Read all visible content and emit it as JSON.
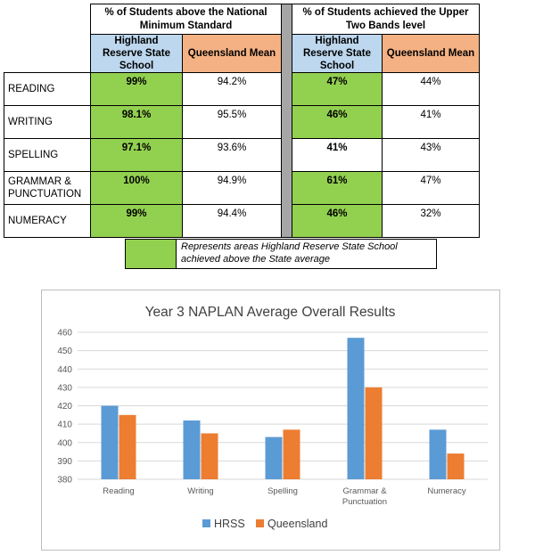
{
  "table": {
    "group_headers": {
      "national_minimum": "% of Students above the National Minimum Standard",
      "upper_two_bands": "% of Students achieved the Upper Two Bands level"
    },
    "sub_headers": {
      "school": "Highland Reserve State School",
      "queensland": "Queensland Mean"
    },
    "rows": [
      {
        "label": "READING",
        "nms_school": "99%",
        "nms_qld": "94.2%",
        "u2b_school": "47%",
        "u2b_qld": "44%",
        "nms_above": true,
        "u2b_above": true
      },
      {
        "label": "WRITING",
        "nms_school": "98.1%",
        "nms_qld": "95.5%",
        "u2b_school": "46%",
        "u2b_qld": "41%",
        "nms_above": true,
        "u2b_above": true
      },
      {
        "label": "SPELLING",
        "nms_school": "97.1%",
        "nms_qld": "93.6%",
        "u2b_school": "41%",
        "u2b_qld": "43%",
        "nms_above": true,
        "u2b_above": false
      },
      {
        "label": "GRAMMAR & PUNCTUATION",
        "nms_school": "100%",
        "nms_qld": "94.9%",
        "u2b_school": "61%",
        "u2b_qld": "47%",
        "nms_above": true,
        "u2b_above": true
      },
      {
        "label": "NUMERACY",
        "nms_school": "99%",
        "nms_qld": "94.4%",
        "u2b_school": "46%",
        "u2b_qld": "32%",
        "nms_above": true,
        "u2b_above": true
      }
    ],
    "colors": {
      "highlight": "#92d050",
      "school_header": "#bdd7ee",
      "qld_header": "#f4b183",
      "separator": "#a6a6a6"
    }
  },
  "legend_note": {
    "text": "Represents areas Highland Reserve State School achieved above the State average",
    "swatch_color": "#92d050"
  },
  "chart_data": {
    "type": "bar",
    "title": "Year 3 NAPLAN Average Overall Results",
    "xlabel": "",
    "ylabel": "",
    "categories": [
      "Reading",
      "Writing",
      "Spelling",
      "Grammar & Punctuation",
      "Numeracy"
    ],
    "series": [
      {
        "name": "HRSS",
        "values": [
          420,
          412,
          403,
          457,
          407
        ],
        "color": "#5b9bd5"
      },
      {
        "name": "Queensland",
        "values": [
          415,
          405,
          407,
          430,
          394
        ],
        "color": "#ed7d31"
      }
    ],
    "ylim": [
      380,
      460
    ],
    "yticks": [
      380,
      390,
      400,
      410,
      420,
      430,
      440,
      450,
      460
    ],
    "grid": true,
    "legend": "bottom"
  }
}
